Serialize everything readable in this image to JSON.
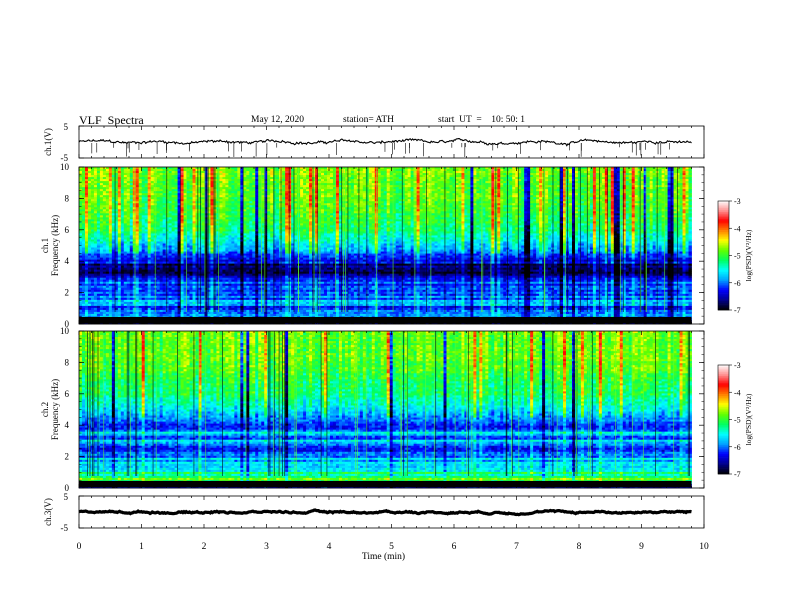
{
  "header": {
    "title": "VLF  Spectra",
    "date": "May 12, 2020",
    "station": "station= ATH",
    "start_ut": "start  UT  =    10: 50: 1"
  },
  "chart_data": [
    {
      "type": "line",
      "name": "ch1-waveform",
      "ylabel": "ch.1(V)",
      "yticks": [
        "5",
        "-5"
      ],
      "ylim": [
        -5,
        5
      ],
      "xlim": [
        0,
        10
      ],
      "x_end": 9.8,
      "mean": 0,
      "amplitude": 0.6,
      "color": "#000000"
    },
    {
      "type": "heatmap",
      "name": "ch1-spectrogram",
      "ylabel_top": "ch.1",
      "ylabel": "Frequency  (kHz)",
      "yticks": [
        "0",
        "2",
        "4",
        "6",
        "8",
        "10"
      ],
      "ylim": [
        0,
        10
      ],
      "xlim": [
        0,
        10
      ],
      "x_end": 9.8,
      "profile": [
        {
          "f": 0.0,
          "v": -6.9
        },
        {
          "f": 0.5,
          "v": -5.8
        },
        {
          "f": 1.0,
          "v": -6.1
        },
        {
          "f": 1.5,
          "v": -6.0
        },
        {
          "f": 2.0,
          "v": -6.3
        },
        {
          "f": 2.5,
          "v": -6.1
        },
        {
          "f": 3.0,
          "v": -6.6
        },
        {
          "f": 3.5,
          "v": -6.7
        },
        {
          "f": 4.0,
          "v": -6.4
        },
        {
          "f": 5.0,
          "v": -5.7
        },
        {
          "f": 6.0,
          "v": -5.2
        },
        {
          "f": 8.0,
          "v": -4.9
        },
        {
          "f": 10.0,
          "v": -4.8
        }
      ],
      "colorbar": {
        "label": "log(PSD)(V²/Hz)",
        "ticks": [
          "-3",
          "-4",
          "-5",
          "-6",
          "-7"
        ],
        "range": [
          -7,
          -3
        ]
      }
    },
    {
      "type": "heatmap",
      "name": "ch2-spectrogram",
      "ylabel_top": "ch.2",
      "ylabel": "Frequency  (kHz)",
      "yticks": [
        "0",
        "2",
        "4",
        "6",
        "8",
        "10"
      ],
      "ylim": [
        0,
        10
      ],
      "xlim": [
        0,
        10
      ],
      "x_end": 9.8,
      "profile": [
        {
          "f": 0.0,
          "v": -6.9
        },
        {
          "f": 0.5,
          "v": -4.9
        },
        {
          "f": 1.0,
          "v": -5.3
        },
        {
          "f": 1.5,
          "v": -5.6
        },
        {
          "f": 2.0,
          "v": -5.8
        },
        {
          "f": 2.5,
          "v": -6.2
        },
        {
          "f": 3.0,
          "v": -5.9
        },
        {
          "f": 3.5,
          "v": -5.8
        },
        {
          "f": 4.0,
          "v": -6.2
        },
        {
          "f": 5.0,
          "v": -5.6
        },
        {
          "f": 6.0,
          "v": -5.2
        },
        {
          "f": 8.0,
          "v": -4.9
        },
        {
          "f": 10.0,
          "v": -4.8
        }
      ],
      "colorbar": {
        "label": "log(PSD)(V²/Hz)",
        "ticks": [
          "-3",
          "-4",
          "-5",
          "-6",
          "-7"
        ],
        "range": [
          -7,
          -3
        ]
      }
    },
    {
      "type": "line",
      "name": "ch3-waveform",
      "ylabel": "ch.3(V)",
      "yticks": [
        "5",
        "-5"
      ],
      "ylim": [
        -5,
        5
      ],
      "xlim": [
        0,
        10
      ],
      "x_end": 9.8,
      "mean": 0,
      "amplitude": 0.15,
      "color": "#000000"
    }
  ],
  "xaxis": {
    "label": "Time  (min)",
    "ticks": [
      "0",
      "1",
      "2",
      "3",
      "4",
      "5",
      "6",
      "7",
      "8",
      "9",
      "10"
    ]
  },
  "colormap": [
    "#000000",
    "#00008c",
    "#0000ff",
    "#00a0ff",
    "#00ffff",
    "#00ff60",
    "#60ff00",
    "#ffff00",
    "#ff8000",
    "#ff0000",
    "#ff9090",
    "#ffffff"
  ]
}
